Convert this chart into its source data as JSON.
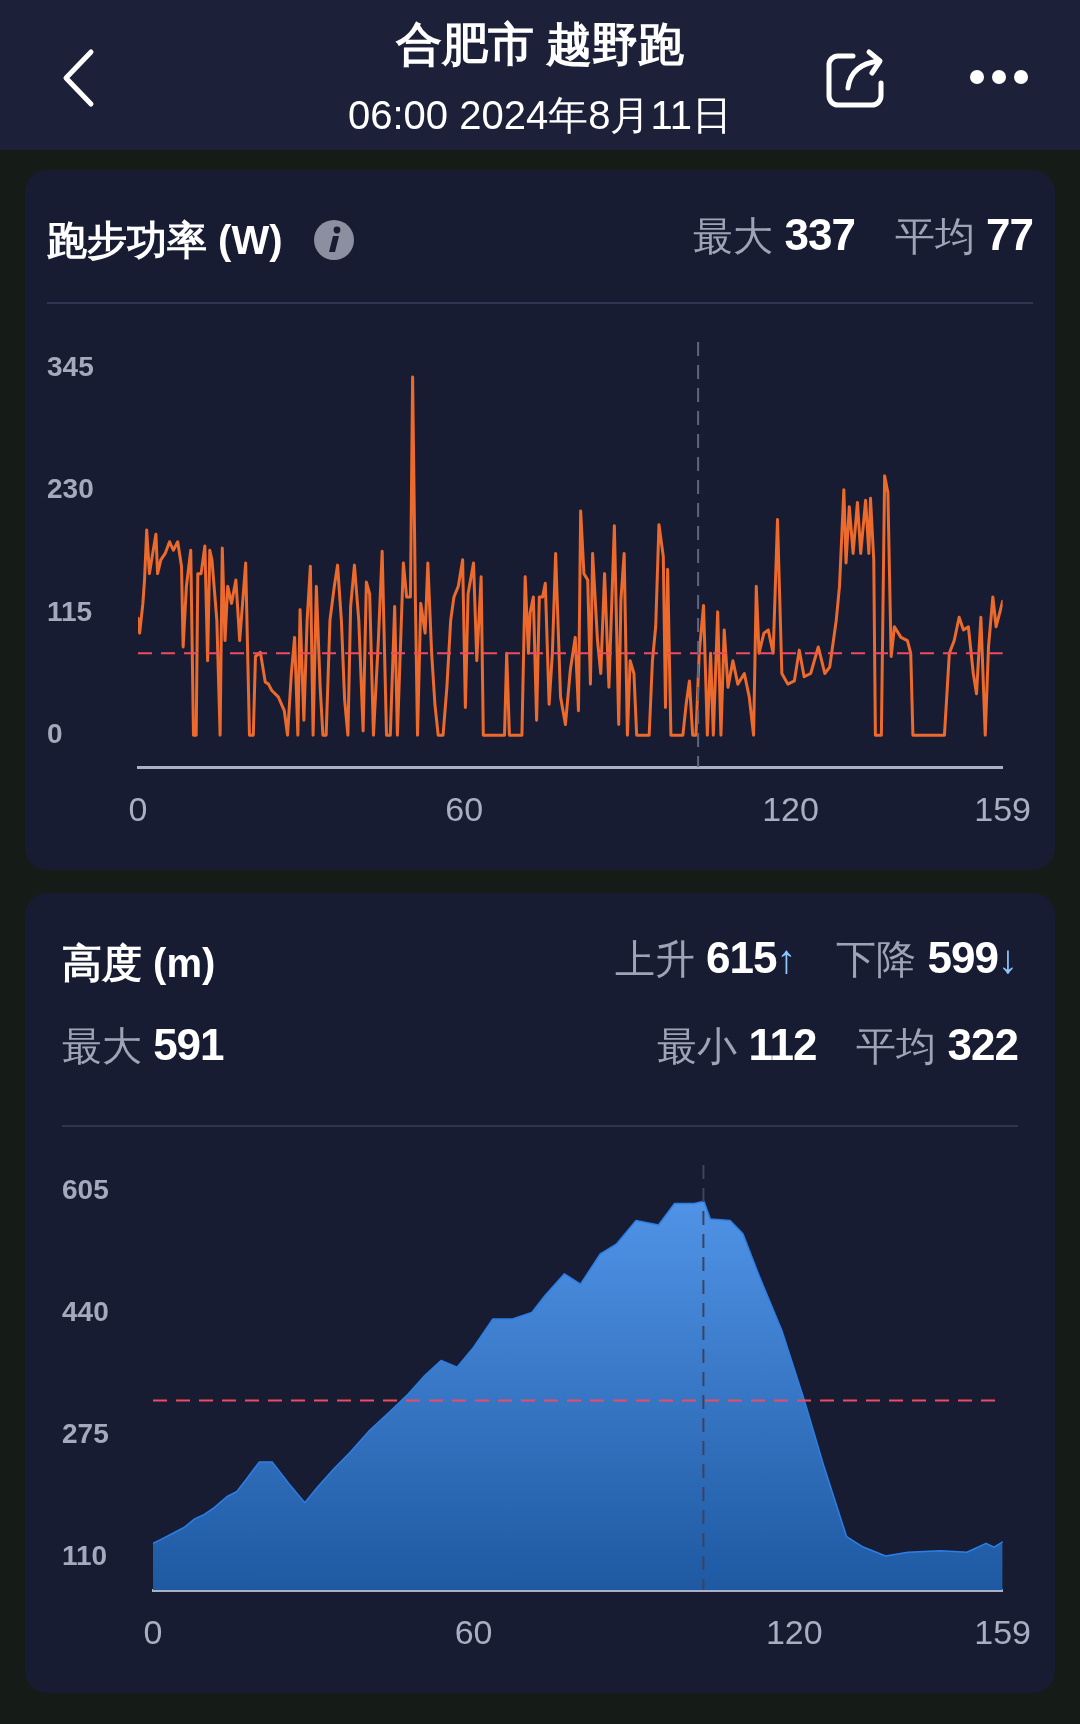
{
  "chart_data": [
    {
      "type": "other",
      "title": "合肥市 越野跑",
      "subtitle": "06:00 2024年8月11日"
    },
    {
      "type": "line",
      "title": "跑步功率 (W)",
      "annotations": [
        "最大 337",
        "平均 77"
      ],
      "x": [
        0,
        0.3,
        0.9,
        1.2,
        1.6,
        2.1,
        2.7,
        3.3,
        3.6,
        4.2,
        5.0,
        5.8,
        6.5,
        7.3,
        8.0,
        8.3,
        8.9,
        9.7,
        10.2,
        10.7,
        11.0,
        11.6,
        12.3,
        12.8,
        13.2,
        13.6,
        14.5,
        15.1,
        15.5,
        16.0,
        16.5,
        17.2,
        18.0,
        18.7,
        19.8,
        20.5,
        21.2,
        21.6,
        22.5,
        23.4,
        24.0,
        24.6,
        25.8,
        26.9,
        27.5,
        28.2,
        28.8,
        29.4,
        29.8,
        30.5,
        31.1,
        31.7,
        32.2,
        32.8,
        33.5,
        34.0,
        34.6,
        35.3,
        36.1,
        36.7,
        37.4,
        38.0,
        38.6,
        39.1,
        39.8,
        40.6,
        41.4,
        42.0,
        42.6,
        43.3,
        44.2,
        44.9,
        45.7,
        46.4,
        47.2,
        47.7,
        48.8,
        49.4,
        50.1,
        50.5,
        51.0,
        51.4,
        52.0,
        52.8,
        53.3,
        54.0,
        54.6,
        55.2,
        56.1,
        56.8,
        57.5,
        58.1,
        58.9,
        59.7,
        60.2,
        60.7,
        61.7,
        62.3,
        63.1,
        63.5,
        67.4,
        67.8,
        68.3,
        70.6,
        71.2,
        71.8,
        72.1,
        72.7,
        73.3,
        73.8,
        74.4,
        74.9,
        75.6,
        76.2,
        76.8,
        77.7,
        78.6,
        79.5,
        80.4,
        81.0,
        81.4,
        82.0,
        82.7,
        83.2,
        83.6,
        84.5,
        85.1,
        85.8,
        86.6,
        87.6,
        88.4,
        88.8,
        89.4,
        90.0,
        90.5,
        91.2,
        91.7,
        94.0,
        94.6,
        95.2,
        95.8,
        96.6,
        97.0,
        97.4,
        98.0,
        100.2,
        100.8,
        101.4,
        102.0,
        102.6,
        103.2,
        104.0,
        104.7,
        105.3,
        105.8,
        106.6,
        107.2,
        107.8,
        108.5,
        109.4,
        110.3,
        111.5,
        112.4,
        113.2,
        113.7,
        114.2,
        115.1,
        115.9,
        116.8,
        117.6,
        118.4,
        119.5,
        120.7,
        121.6,
        122.5,
        123.7,
        125.1,
        126.3,
        127.2,
        128.4,
        129.0,
        129.8,
        130.2,
        130.8,
        131.5,
        132.3,
        132.9,
        133.8,
        134.4,
        134.7,
        135.3,
        135.6,
        136.7,
        137.3,
        137.9,
        138.5,
        139.1,
        140.3,
        141.5,
        142.1,
        142.5,
        148.3,
        149.2,
        150.1,
        151.0,
        151.8,
        152.7,
        153.6,
        154.2,
        155.0,
        155.8,
        156.4,
        157.2,
        157.8,
        159
      ],
      "values": [
        110,
        96,
        124,
        146,
        193,
        152,
        171,
        189,
        152,
        165,
        171,
        182,
        174,
        182,
        159,
        83,
        140,
        174,
        0,
        0,
        152,
        152,
        178,
        70,
        174,
        165,
        108,
        0,
        176,
        89,
        140,
        124,
        146,
        89,
        162,
        0,
        0,
        74,
        78,
        50,
        48,
        42,
        36,
        23,
        0,
        58,
        92,
        0,
        118,
        14,
        108,
        159,
        0,
        140,
        45,
        0,
        0,
        108,
        140,
        160,
        108,
        33,
        0,
        121,
        160,
        108,
        4,
        144,
        133,
        0,
        89,
        173,
        0,
        0,
        121,
        0,
        162,
        130,
        130,
        337,
        130,
        0,
        124,
        96,
        162,
        77,
        29,
        0,
        0,
        45,
        108,
        130,
        140,
        165,
        26,
        133,
        162,
        70,
        149,
        0,
        0,
        77,
        0,
        0,
        149,
        77,
        115,
        130,
        14,
        130,
        130,
        143,
        29,
        77,
        171,
        36,
        10,
        61,
        92,
        23,
        211,
        152,
        146,
        48,
        171,
        89,
        58,
        152,
        45,
        197,
        10,
        127,
        171,
        0,
        70,
        58,
        0,
        0,
        70,
        102,
        198,
        168,
        26,
        156,
        0,
        0,
        29,
        51,
        0,
        0,
        77,
        122,
        0,
        77,
        0,
        116,
        0,
        99,
        45,
        70,
        48,
        58,
        36,
        0,
        140,
        77,
        96,
        99,
        77,
        203,
        58,
        48,
        51,
        80,
        55,
        58,
        83,
        58,
        64,
        108,
        140,
        231,
        162,
        215,
        171,
        219,
        171,
        221,
        171,
        223,
        165,
        0,
        0,
        244,
        228,
        74,
        102,
        92,
        89,
        77,
        0,
        0,
        77,
        89,
        111,
        99,
        102,
        58,
        39,
        111,
        0,
        83,
        130,
        102,
        126
      ],
      "color": "#ec6a2c",
      "xlim": [
        0,
        159
      ],
      "xticks": [
        0,
        60,
        120,
        159
      ],
      "ylim": [
        -30,
        370
      ],
      "yticks": [
        0,
        115,
        230,
        345
      ],
      "ref_lines": [
        {
          "axis": "y",
          "value": 77,
          "color": "#ee4b62",
          "line_style": "dashed"
        },
        {
          "axis": "x",
          "value": 103,
          "color": "#5d6680",
          "line_style": "dashed"
        }
      ]
    },
    {
      "type": "area",
      "title": "高度 (m)",
      "annotations": [
        "上升 615↑",
        "下降 599↓",
        "最大 591",
        "最小 112",
        "平均 322"
      ],
      "x": [
        0,
        1.7,
        4.1,
        5.9,
        7.8,
        9.6,
        11.4,
        13.8,
        15.7,
        17.5,
        19.9,
        22.3,
        25.4,
        28.4,
        30.8,
        33.9,
        36.9,
        40.6,
        44.2,
        47.8,
        50.9,
        53.9,
        56.9,
        60.0,
        63.6,
        67.3,
        70.9,
        73.4,
        77.0,
        80.0,
        83.7,
        86.7,
        90.4,
        94.6,
        97.6,
        101.3,
        103.1,
        104.3,
        108.0,
        110.4,
        113.4,
        117.7,
        121.9,
        125.6,
        129.8,
        132.9,
        137.1,
        141.3,
        147.4,
        152.3,
        155.9,
        157.4,
        159
      ],
      "values": [
        129,
        135,
        144,
        151,
        162,
        168,
        177,
        192,
        199,
        216,
        239,
        239,
        210,
        184,
        205,
        230,
        252,
        282,
        306,
        331,
        356,
        376,
        367,
        394,
        432,
        432,
        441,
        464,
        493,
        479,
        520,
        533,
        565,
        559,
        588,
        588,
        591,
        567,
        565,
        547,
        491,
        416,
        322,
        232,
        138,
        124,
        112,
        117,
        119,
        117,
        129,
        124,
        131
      ],
      "color": "#2b7fe8",
      "xlim": [
        0,
        159
      ],
      "xticks": [
        0,
        60,
        120,
        159
      ],
      "ylim": [
        66,
        640
      ],
      "yticks": [
        110,
        275,
        440,
        605
      ],
      "ref_lines": [
        {
          "axis": "y",
          "value": 322,
          "color": "#ee4b62",
          "line_style": "dashed"
        },
        {
          "axis": "x",
          "value": 103,
          "color": "#3a4462",
          "line_style": "dashed"
        }
      ]
    }
  ]
}
